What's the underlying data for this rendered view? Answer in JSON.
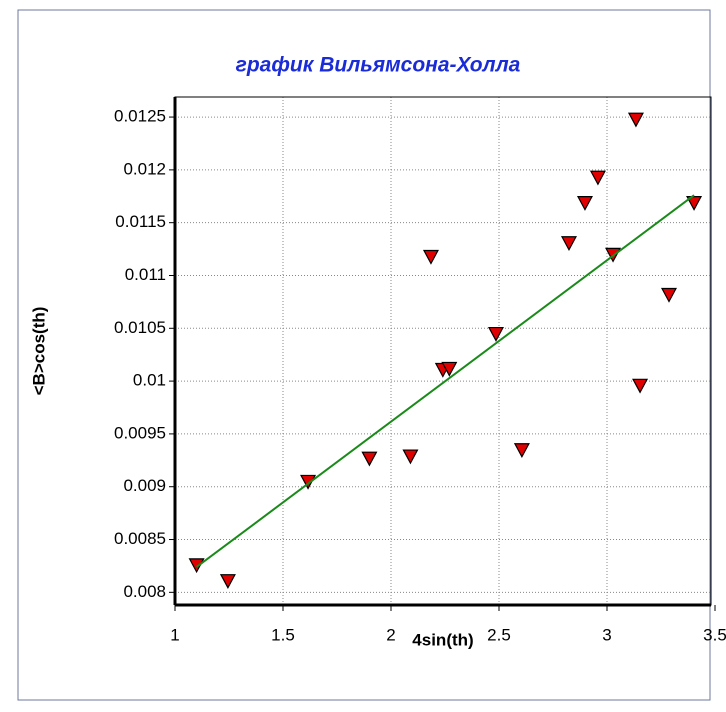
{
  "chart_data": {
    "type": "scatter",
    "title": "график Вильямсона-Холла",
    "x_label": "4sin(th)",
    "y_label": "<B>cos(th)",
    "xlim": [
      1,
      3.5
    ],
    "ylim": [
      0.00788,
      0.01269
    ],
    "xticks": [
      1,
      1.5,
      2,
      2.5,
      3,
      3.5
    ],
    "yticks": [
      0.008,
      0.0085,
      0.009,
      0.0095,
      0.01,
      0.0105,
      0.011,
      0.0115,
      0.012,
      0.0125
    ],
    "grid": true,
    "series": [
      {
        "color": "#e00000",
        "marker": "triangle-down",
        "x": [
          1.1,
          1.245,
          1.616,
          1.9,
          2.09,
          2.185,
          2.24,
          2.27,
          2.486,
          2.606,
          2.824,
          2.898,
          2.958,
          3.028,
          3.134,
          3.153,
          3.287,
          3.403
        ],
        "values": [
          0.00826,
          0.00811,
          0.00905,
          0.00927,
          0.00929,
          0.01118,
          0.01011,
          0.01012,
          0.01045,
          0.00935,
          0.01131,
          0.01169,
          0.01193,
          0.0112,
          0.01248,
          0.00996,
          0.01082,
          0.01169
        ]
      },
      {
        "color": "#1a8a1a",
        "marker": "line",
        "x": [
          1.1,
          3.403
        ],
        "values": [
          0.00824,
          0.01176
        ]
      }
    ]
  }
}
